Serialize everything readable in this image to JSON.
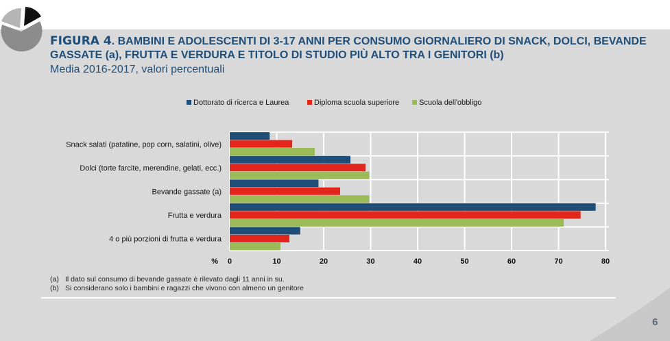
{
  "header": {
    "figure_label": "FIGURA 4",
    "title": ". BAMBINI E ADOLESCENTI DI 3-17 ANNI PER CONSUMO GIORNALIERO DI SNACK, DOLCI, BEVANDE GASSATE (a), FRUTTA E VERDURA E TITOLO DI STUDIO PIÙ ALTO TRA I GENITORI  (b)",
    "subtitle": "Media 2016-2017, valori percentuali",
    "logo_icon": "pie-chart-icon"
  },
  "chart_data": {
    "type": "bar",
    "orientation": "horizontal",
    "categories": [
      "Snack salati (patatine, pop corn, salatini, olive)",
      "Dolci (torte farcite, merendine, gelati, ecc.)",
      "Bevande gassate (a)",
      "Frutta e verdura",
      "4 o più porzioni di frutta e verdura"
    ],
    "series": [
      {
        "name": "Dottorato di ricerca e Laurea",
        "color": "#1f4e79",
        "values": [
          8.5,
          25.7,
          18.9,
          77.9,
          15.0
        ]
      },
      {
        "name": "Diploma scuola superiore",
        "color": "#e3261c",
        "values": [
          13.3,
          28.9,
          23.5,
          74.7,
          12.7
        ]
      },
      {
        "name": "Scuola dell'obbligo",
        "color": "#9bbb59",
        "values": [
          18.1,
          29.7,
          29.7,
          71.1,
          10.8
        ]
      }
    ],
    "xlabel": "%",
    "xlim": [
      0,
      80
    ],
    "xticks": [
      "0",
      "10",
      "20",
      "30",
      "40",
      "50",
      "60",
      "70",
      "80"
    ],
    "grid": true,
    "legend": "top"
  },
  "notes": [
    {
      "key": "(a)",
      "text": "Il dato sul consumo di bevande gassate è rilevato dagli 11 anni in su."
    },
    {
      "key": "(b)",
      "text": "Si considerano solo i bambini e ragazzi che vivono con almeno un genitore"
    }
  ],
  "page_number": "6"
}
